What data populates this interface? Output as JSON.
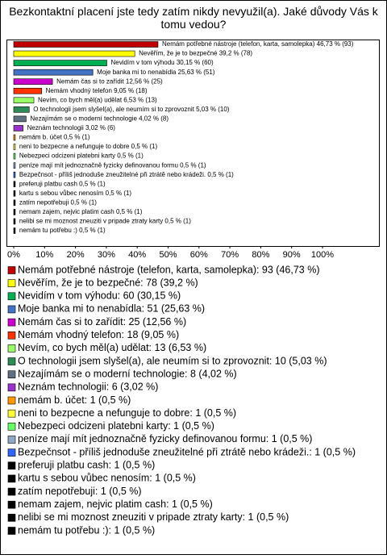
{
  "chart_data": {
    "type": "hbar",
    "title": "Bezkontaktní placení jste tedy zatím nikdy nevyužil(a). Jaké důvody Vás k tomu vedou?",
    "values": [
      46.73,
      39.2,
      30.15,
      25.63,
      12.56,
      9.05,
      6.53,
      5.03,
      4.02,
      3.02,
      0.5,
      0.5,
      0.5,
      0.5,
      0.5,
      0.5,
      0.5,
      0.5,
      0.5,
      0.5,
      0.5
    ],
    "value_labels": [
      "Nemám potřebné nástroje (telefon, karta, samolepka) 46,73 % (93)",
      "Nevěřím, že je to bezpečné 39,2 % (78)",
      "Nevidím v tom výhodu 30,15 % (60)",
      "Moje banka mi to nenabídla 25,63 % (51)",
      "Nemám čas si to zařídit 12,56 % (25)",
      "Nemám vhodný telefon 9,05 % (18)",
      "Nevím, co bych měl(a) udělat 6,53 % (13)",
      "O technologii jsem slyšel(a), ale neumím si to zprovoznit 5,03 % (10)",
      "Nezajímám se o moderní technologie 4,02 % (8)",
      "Neznám technologii 3,02 % (6)",
      "nemám b. účet 0,5 % (1)",
      "neni to bezpecne a nefunguje to dobre 0,5 % (1)",
      "Nebezpeci odcizeni platebni karty 0,5 % (1)",
      "peníze mají mít jednoznačně fyzicky definovanou formu 0,5 % (1)",
      "Bezpečnsot - příliš jednoduše zneužitelné při ztrátě nebo krádeži. 0,5 % (1)",
      "preferuji platbu cash 0,5 % (1)",
      "kartu s sebou vůbec nenosím 0,5 % (1)",
      "zatím nepotřebuji 0,5 % (1)",
      "nemam zajem, nejvic platim cash 0,5 % (1)",
      "nelibi se mi moznost zneuziti v pripade ztraty karty 0,5 % (1)",
      "nemám tu potřebu :) 0,5 % (1)"
    ],
    "legend_labels": [
      "Nemám potřebné nástroje (telefon, karta, samolepka): 93 (46,73 %)",
      "Nevěřím, že je to bezpečné: 78 (39,2 %)",
      "Nevidím v tom výhodu: 60 (30,15 %)",
      "Moje banka mi to nenabídla: 51 (25,63 %)",
      "Nemám čas si to zařídit: 25 (12,56 %)",
      "Nemám vhodný telefon: 18 (9,05 %)",
      "Nevím, co bych měl(a) udělat: 13 (6,53 %)",
      "O technologii jsem slyšel(a), ale neumím si to zprovoznit: 10 (5,03 %)",
      "Nezajímám se o moderní technologie: 8 (4,02 %)",
      "Neznám technologii: 6 (3,02 %)",
      "nemám b. účet: 1 (0,5 %)",
      "neni to bezpecne a nefunguje to dobre: 1 (0,5 %)",
      "Nebezpeci odcizeni platebni karty: 1 (0,5 %)",
      "peníze mají mít jednoznačně fyzicky definovanou formu: 1 (0,5 %)",
      "Bezpečnsot - příliš jednoduše zneužitelné při ztrátě nebo krádeži.: 1 (0,5 %)",
      "preferuji platbu cash: 1 (0,5 %)",
      "kartu s sebou vůbec nenosím: 1 (0,5 %)",
      "zatím nepotřebuji: 1 (0,5 %)",
      "nemam zajem, nejvic platim cash: 1 (0,5 %)",
      "nelibi se mi moznost zneuziti v pripade ztraty karty: 1 (0,5 %)",
      "nemám tu potřebu :): 1 (0,5 %)"
    ],
    "colors": [
      "#c00000",
      "#ffff00",
      "#00b050",
      "#4472c4",
      "#cc00cc",
      "#ff3300",
      "#99ff66",
      "#2e8b57",
      "#607080",
      "#9933cc",
      "#ff9900",
      "#ffff33",
      "#66ff66",
      "#8fa8c8",
      "#3366ff",
      "#000000",
      "#000000",
      "#000000",
      "#000000",
      "#000000",
      "#000000"
    ],
    "xlim": [
      0,
      100
    ],
    "xticks": [
      {
        "value": 0,
        "label": "0%"
      },
      {
        "value": 10,
        "label": "10%"
      },
      {
        "value": 20,
        "label": "20%"
      },
      {
        "value": 30,
        "label": "30%"
      },
      {
        "value": 40,
        "label": "40%"
      },
      {
        "value": 50,
        "label": "50%"
      },
      {
        "value": 60,
        "label": "60%"
      },
      {
        "value": 70,
        "label": "70%"
      },
      {
        "value": 80,
        "label": "80%"
      },
      {
        "value": 90,
        "label": "90%"
      },
      {
        "value": 100,
        "label": "100%"
      }
    ]
  }
}
